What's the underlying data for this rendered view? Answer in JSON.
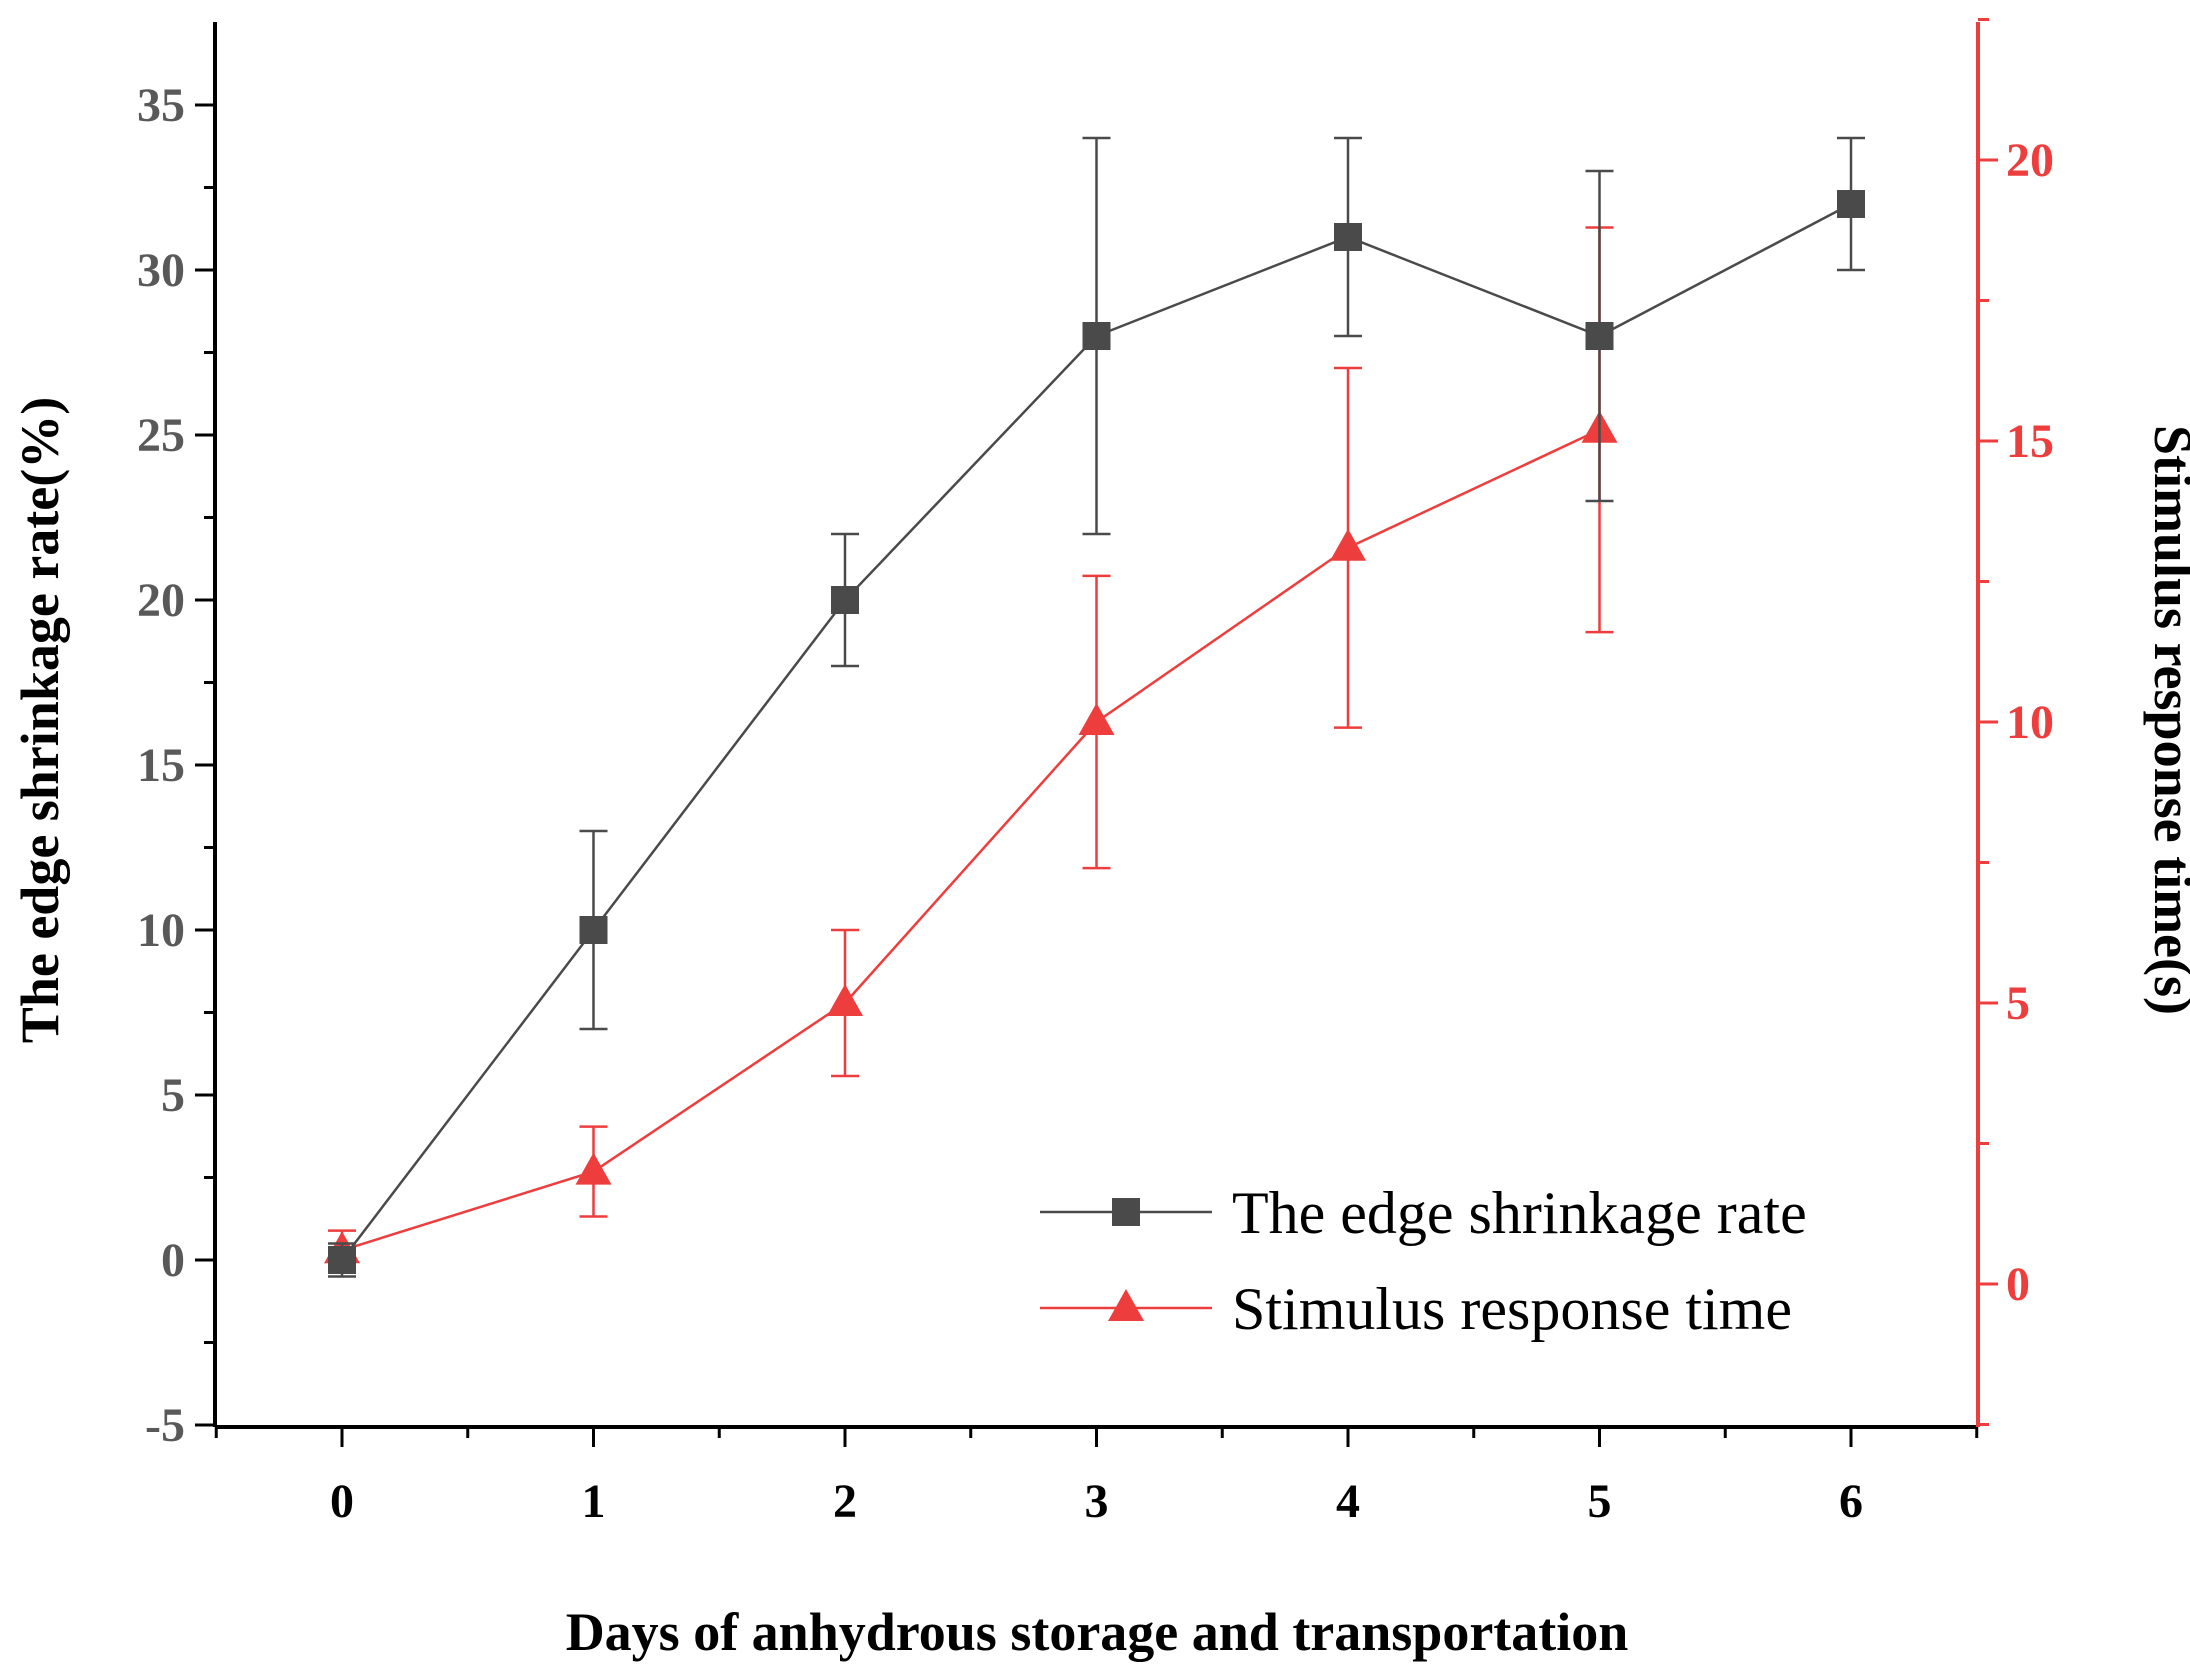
{
  "chart_data": {
    "type": "line",
    "xlabel": "Days of anhydrous storage and transportation",
    "ylabel": "The edge shrinkage rate(%)",
    "y2label": "Stimulus response time(s)",
    "xlim": [
      -0.5,
      6.5
    ],
    "ylim": [
      -5,
      37
    ],
    "y2lim": [
      -2.5,
      22.5
    ],
    "x_ticks": [
      "0",
      "1",
      "2",
      "3",
      "4",
      "5",
      "6"
    ],
    "y_ticks": [
      "-5",
      "0",
      "5",
      "10",
      "15",
      "20",
      "25",
      "30",
      "35"
    ],
    "y2_ticks": [
      "0",
      "5",
      "10",
      "15",
      "20"
    ],
    "legend_position": "bottom-right",
    "grid": false,
    "colors": {
      "left_axis": "#595959",
      "right_axis": "#ee3d3d",
      "frame": "#000000"
    },
    "series": [
      {
        "name": "The edge shrinkage rate",
        "axis": "left",
        "marker": "square",
        "color": "#4a4a4a",
        "x": [
          0,
          1,
          2,
          3,
          4,
          5,
          6
        ],
        "values": [
          0,
          10,
          20,
          28,
          31,
          28,
          32
        ],
        "error": [
          0.5,
          3,
          2,
          6,
          3,
          5,
          2
        ]
      },
      {
        "name": "Stimulus response time",
        "axis": "right",
        "marker": "triangle",
        "color": "#ee3d3d",
        "x": [
          0,
          1,
          2,
          3,
          4,
          5
        ],
        "values": [
          0.6,
          2.0,
          5.0,
          10.0,
          13.1,
          15.2
        ],
        "error": [
          0.35,
          0.8,
          1.3,
          2.6,
          3.2,
          3.6
        ]
      }
    ]
  }
}
